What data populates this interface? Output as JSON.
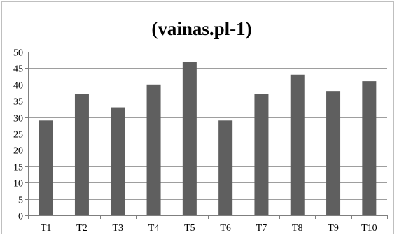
{
  "chart_data": {
    "type": "bar",
    "title": "(vainas.pl-1)",
    "xlabel": "",
    "ylabel": "",
    "categories": [
      "T1",
      "T2",
      "T3",
      "T4",
      "T5",
      "T6",
      "T7",
      "T8",
      "T9",
      "T10"
    ],
    "values": [
      29,
      37,
      33,
      40,
      47,
      29,
      37,
      43,
      38,
      41
    ],
    "ylim": [
      0,
      50
    ],
    "yticks": [
      "0",
      "5",
      "10",
      "15",
      "20",
      "25",
      "30",
      "35",
      "40",
      "45",
      "50"
    ],
    "grid": true,
    "legend": "none",
    "bar_color": "#5f5f5f"
  }
}
